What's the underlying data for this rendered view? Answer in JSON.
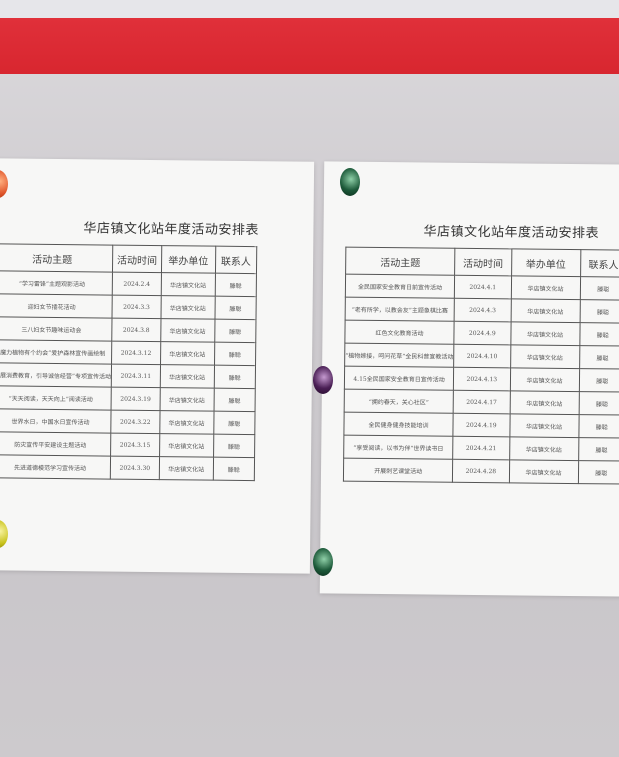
{
  "sheets": [
    {
      "title": "华店镇文化站年度活动安排表",
      "headers": [
        "活动主题",
        "活动时间",
        "举办单位",
        "联系人"
      ],
      "rows": [
        [
          "“学习雷锋”主题观影活动",
          "2024.2.4",
          "华店镇文化站",
          "滕聪"
        ],
        [
          "迎妇女节插花活动",
          "2024.3.3",
          "华店镇文化站",
          "滕聪"
        ],
        [
          "三八妇女节趣味运动会",
          "2024.3.8",
          "华店镇文化站",
          "滕聪"
        ],
        [
          "“魔力植物有个约会”爱护森林宣传画绘制",
          "2024.3.12",
          "华店镇文化站",
          "滕聪"
        ],
        [
          "“开展消费教育，引导诚信经营”专项宣传活动",
          "2024.3.11",
          "华店镇文化站",
          "滕聪"
        ],
        [
          "“天天阅读，天天向上”阅读活动",
          "2024.3.19",
          "华店镇文化站",
          "滕聪"
        ],
        [
          "世界水日，中国水日宣传活动",
          "2024.3.22",
          "华店镇文化站",
          "滕聪"
        ],
        [
          "防灾宣传平安建设主题活动",
          "2024.3.15",
          "华店镇文化站",
          "滕聪"
        ],
        [
          "先进道德模范学习宣传活动",
          "2024.3.30",
          "华店镇文化站",
          "滕聪"
        ]
      ]
    },
    {
      "title": "华店镇文化站年度活动安排表",
      "headers": [
        "活动主题",
        "活动时间",
        "举办单位",
        "联系人"
      ],
      "rows": [
        [
          "全民国家安全教育日前宣传活动",
          "2024.4.1",
          "华店镇文化站",
          "滕聪"
        ],
        [
          "“老有所学，以教会友”主题象棋比赛",
          "2024.4.3",
          "华店镇文化站",
          "滕聪"
        ],
        [
          "红色文化教育活动",
          "2024.4.9",
          "华店镇文化站",
          "滕聪"
        ],
        [
          "“植物嫁接，呵问花草”全民科普宣教活动",
          "2024.4.10",
          "华店镇文化站",
          "滕聪"
        ],
        [
          "4.15全民国家安全教育日宣传活动",
          "2024.4.13",
          "华店镇文化站",
          "滕聪"
        ],
        [
          "“拥约春天，关心社区”",
          "2024.4.17",
          "华店镇文化站",
          "滕聪"
        ],
        [
          "全民健身健身技能培训",
          "2024.4.19",
          "华店镇文化站",
          "滕聪"
        ],
        [
          "“享受阅读，以书为伴”世界读书日",
          "2024.4.21",
          "华店镇文化站",
          "滕聪"
        ],
        [
          "开展刺艺课堂活动",
          "2024.4.28",
          "华店镇文化站",
          "滕聪"
        ]
      ]
    }
  ],
  "colors": {
    "band": "#d8262f",
    "magnet_green": "#1d5a3a",
    "magnet_purple": "#4a1f55",
    "magnet_orange": "#e0552a",
    "magnet_yellow": "#c8c21a"
  }
}
